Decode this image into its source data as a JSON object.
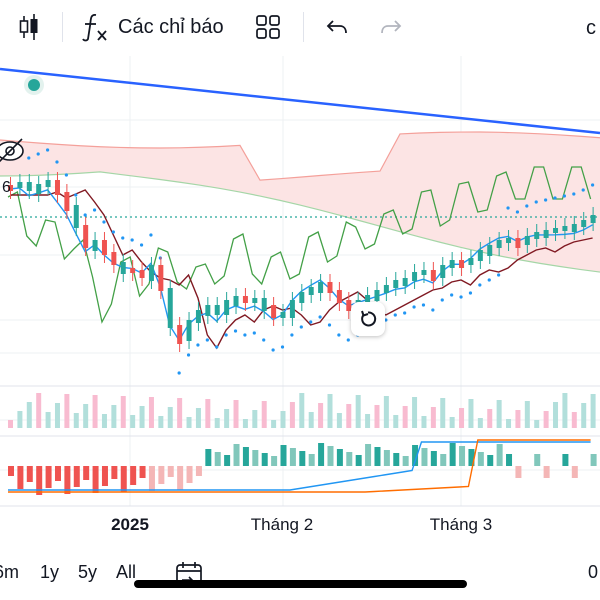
{
  "toolbar": {
    "indicators_label": "Các chỉ báo",
    "right_cut_text": "c"
  },
  "icons": {
    "candles": "candlestick-icon",
    "fx": "function-icon",
    "layout": "grid-icon",
    "undo": "undo-icon",
    "redo": "redo-icon",
    "hide": "eye-off-icon",
    "reset": "reset-icon",
    "calendar": "calendar-icon"
  },
  "chart": {
    "price_left_label": "6",
    "x_ticks": [
      "2025",
      "Tháng 2",
      "Tháng 3"
    ]
  },
  "ranges": [
    "6m",
    "1y",
    "5y",
    "All"
  ],
  "bottom_right_cut_text": "0",
  "colors": {
    "up": "#26a69a",
    "down": "#ef5350",
    "trendline": "#2962ff",
    "tenkan": "#2196f3",
    "kijun": "#801922",
    "chikou": "#43a047",
    "cloud_fill": "#fce4e4",
    "psar": "#2196f3",
    "macd": "#2196f3",
    "signal": "#ff6d00"
  }
}
